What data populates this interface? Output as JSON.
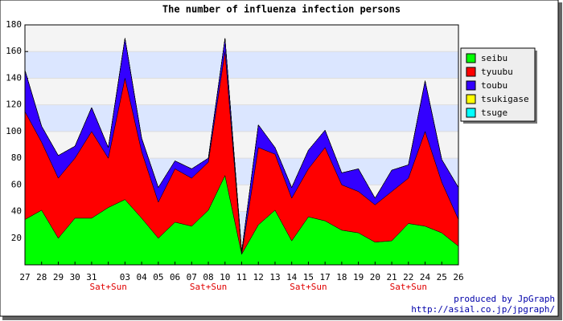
{
  "chart_data": {
    "type": "stacked_area",
    "title": "The number of influenza infection persons",
    "categories": [
      "27",
      "28",
      "29",
      "30",
      "31",
      null,
      "03",
      "04",
      "05",
      "06",
      "07",
      "08",
      "10",
      "11",
      "12",
      "13",
      "14",
      "15",
      "17",
      "18",
      "19",
      "20",
      "21",
      "22",
      "24",
      "25",
      "26"
    ],
    "category_notes": [
      null,
      null,
      null,
      null,
      null,
      "Sat+Sun",
      null,
      null,
      null,
      null,
      null,
      "Sat+Sun",
      null,
      null,
      null,
      null,
      null,
      "Sat+Sun",
      null,
      null,
      null,
      null,
      null,
      "Sat+Sun",
      null,
      null,
      null
    ],
    "series": [
      {
        "name": "seibu",
        "color": "#00ff00",
        "values": [
          34,
          41,
          20,
          35,
          35,
          43,
          49,
          35,
          20,
          32,
          29,
          41,
          67,
          8,
          30,
          41,
          18,
          36,
          33,
          26,
          24,
          17,
          18,
          31,
          29,
          24,
          14
        ]
      },
      {
        "name": "tyuubu",
        "color": "#ff0000",
        "values": [
          81,
          51,
          45,
          45,
          65,
          37,
          91,
          50,
          27,
          40,
          36,
          36,
          93,
          0,
          58,
          42,
          32,
          36,
          55,
          34,
          31,
          28,
          37,
          34,
          71,
          38,
          20
        ]
      },
      {
        "name": "toubu",
        "color": "#3300ff",
        "values": [
          31,
          12,
          17,
          9,
          18,
          8,
          30,
          10,
          11,
          6,
          7,
          3,
          10,
          2,
          17,
          5,
          8,
          14,
          13,
          9,
          17,
          5,
          16,
          10,
          38,
          17,
          24
        ]
      },
      {
        "name": "tsukigase",
        "color": "#ffff00",
        "values": [
          0,
          0,
          0,
          0,
          0,
          0,
          0,
          0,
          0,
          0,
          0,
          0,
          0,
          0,
          0,
          0,
          0,
          0,
          0,
          0,
          0,
          0,
          0,
          0,
          0,
          0,
          0
        ]
      },
      {
        "name": "tsuge",
        "color": "#00ffff",
        "values": [
          0,
          0,
          0,
          0,
          0,
          0,
          0,
          0,
          0,
          0,
          0,
          0,
          0,
          0,
          0,
          0,
          0,
          0,
          0,
          0,
          0,
          0,
          0,
          0,
          0,
          0,
          0
        ]
      }
    ],
    "ylim": [
      0,
      180
    ],
    "yticks": [
      20,
      40,
      60,
      80,
      100,
      120,
      140,
      160,
      180
    ],
    "grid": true,
    "legend": "upper-right",
    "footer": [
      "produced by JpGraph",
      "http://asial.co.jp/jpgraph/"
    ]
  }
}
